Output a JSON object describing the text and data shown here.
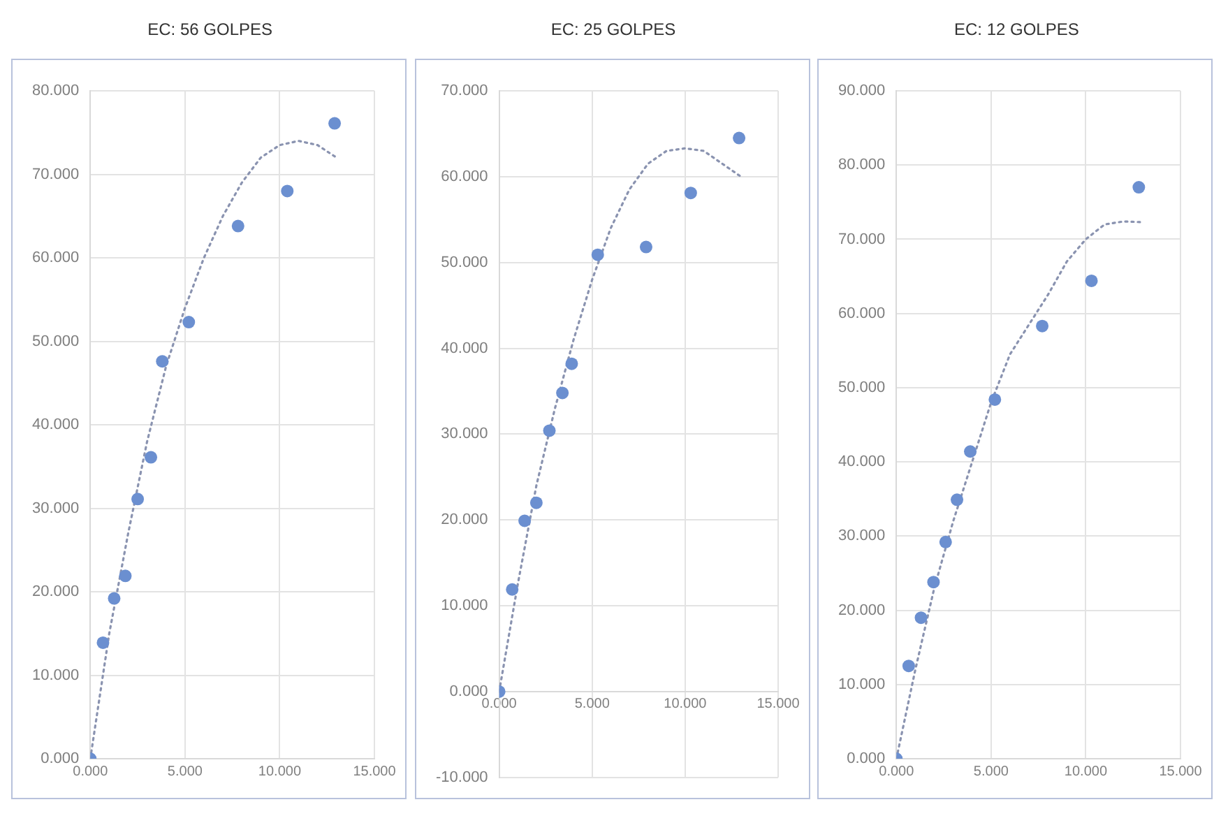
{
  "chart_data": [
    {
      "type": "scatter",
      "title": "EC: 56 GOLPES",
      "xlim": [
        0,
        15
      ],
      "ylim": [
        0,
        80
      ],
      "xticks": [
        {
          "value": 0,
          "label": "0.000"
        },
        {
          "value": 5,
          "label": "5.000"
        },
        {
          "value": 10,
          "label": "10.000"
        },
        {
          "value": 15,
          "label": "15.000"
        }
      ],
      "yticks": [
        {
          "value": 0,
          "label": "0.000"
        },
        {
          "value": 10,
          "label": "10.000"
        },
        {
          "value": 20,
          "label": "20.000"
        },
        {
          "value": 30,
          "label": "30.000"
        },
        {
          "value": 40,
          "label": "40.000"
        },
        {
          "value": 50,
          "label": "50.000"
        },
        {
          "value": 60,
          "label": "60.000"
        },
        {
          "value": 70,
          "label": "70.000"
        },
        {
          "value": 80,
          "label": "80.000"
        }
      ],
      "grid": true,
      "series": [
        {
          "type": "scatter",
          "color": "#6b8fd0",
          "marker": "circle",
          "x": [
            0,
            0.67,
            1.26,
            1.85,
            2.5,
            3.2,
            3.8,
            5.2,
            7.8,
            10.4,
            12.9
          ],
          "values": [
            0,
            13.9,
            19.2,
            21.9,
            31.1,
            36.1,
            47.6,
            52.3,
            63.8,
            68.0,
            76.1
          ]
        },
        {
          "type": "line",
          "color": "#8a93b0",
          "marker": "none",
          "line_style": "dotted",
          "x": [
            0,
            1,
            2,
            3,
            4,
            5,
            6,
            7,
            8,
            9,
            10,
            11,
            12,
            13
          ],
          "values": [
            0,
            15,
            27,
            38,
            47,
            54,
            60,
            65,
            69,
            72,
            73.5,
            74,
            73.5,
            72
          ]
        }
      ]
    },
    {
      "type": "scatter",
      "title": "EC: 25 GOLPES",
      "xlim": [
        0,
        15
      ],
      "ylim": [
        -10,
        70
      ],
      "xticks": [
        {
          "value": 0,
          "label": "0.000"
        },
        {
          "value": 5,
          "label": "5.000"
        },
        {
          "value": 10,
          "label": "10.000"
        },
        {
          "value": 15,
          "label": "15.000"
        }
      ],
      "yticks": [
        {
          "value": -10,
          "label": "-10.000"
        },
        {
          "value": 0,
          "label": "0.000"
        },
        {
          "value": 10,
          "label": "10.000"
        },
        {
          "value": 20,
          "label": "20.000"
        },
        {
          "value": 30,
          "label": "30.000"
        },
        {
          "value": 40,
          "label": "40.000"
        },
        {
          "value": 50,
          "label": "50.000"
        },
        {
          "value": 60,
          "label": "60.000"
        },
        {
          "value": 70,
          "label": "70.000"
        }
      ],
      "grid": true,
      "series": [
        {
          "type": "scatter",
          "color": "#6b8fd0",
          "marker": "circle",
          "x": [
            0,
            0.7,
            1.37,
            2.0,
            2.7,
            3.4,
            3.9,
            5.3,
            7.9,
            10.3,
            12.9
          ],
          "values": [
            0,
            11.9,
            19.9,
            22.0,
            30.4,
            34.8,
            38.2,
            50.9,
            51.8,
            58.1,
            64.5
          ]
        },
        {
          "type": "line",
          "color": "#8a93b0",
          "marker": "none",
          "line_style": "dotted",
          "x": [
            0,
            1,
            2,
            3,
            4,
            5,
            6,
            7,
            8,
            9,
            10,
            11,
            12,
            13
          ],
          "values": [
            0,
            12.5,
            24,
            33,
            41,
            48,
            54,
            58.5,
            61.5,
            63,
            63.3,
            63,
            61.5,
            60
          ]
        }
      ]
    },
    {
      "type": "scatter",
      "title": "EC: 12 GOLPES",
      "xlim": [
        0,
        15
      ],
      "ylim": [
        0,
        90
      ],
      "xticks": [
        {
          "value": 0,
          "label": "0.000"
        },
        {
          "value": 5,
          "label": "5.000"
        },
        {
          "value": 10,
          "label": "10.000"
        },
        {
          "value": 15,
          "label": "15.000"
        }
      ],
      "yticks": [
        {
          "value": 0,
          "label": "0.000"
        },
        {
          "value": 10,
          "label": "10.000"
        },
        {
          "value": 20,
          "label": "20.000"
        },
        {
          "value": 30,
          "label": "30.000"
        },
        {
          "value": 40,
          "label": "40.000"
        },
        {
          "value": 50,
          "label": "50.000"
        },
        {
          "value": 60,
          "label": "60.000"
        },
        {
          "value": 70,
          "label": "70.000"
        },
        {
          "value": 80,
          "label": "80.000"
        },
        {
          "value": 90,
          "label": "90.000"
        }
      ],
      "grid": true,
      "series": [
        {
          "type": "scatter",
          "color": "#6b8fd0",
          "marker": "circle",
          "x": [
            0,
            0.65,
            1.3,
            1.96,
            2.6,
            3.2,
            3.9,
            5.2,
            7.7,
            10.3,
            12.8
          ],
          "values": [
            0,
            12.5,
            19.0,
            23.8,
            29.2,
            34.9,
            41.4,
            48.4,
            58.3,
            64.4,
            77.0
          ]
        },
        {
          "type": "line",
          "color": "#8a93b0",
          "marker": "none",
          "line_style": "dotted",
          "x": [
            0,
            1,
            2,
            3,
            4,
            5,
            6,
            7,
            8,
            9,
            10,
            11,
            12,
            13
          ],
          "values": [
            0,
            12,
            23,
            32,
            40,
            48,
            54.5,
            58.5,
            62.5,
            67,
            70,
            72,
            72.4,
            72.3
          ]
        }
      ]
    }
  ]
}
